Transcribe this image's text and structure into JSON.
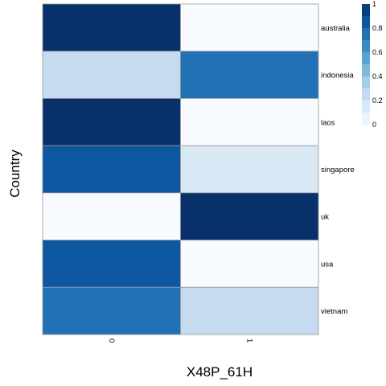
{
  "chart_data": {
    "type": "heatmap",
    "xlabel": "X48P_61H",
    "ylabel": "Country",
    "x_categories": [
      "0",
      "1"
    ],
    "y_categories": [
      "australia",
      "indonesia",
      "laos",
      "singapore",
      "uk",
      "usa",
      "vietnam"
    ],
    "values": [
      [
        1.0,
        0.0
      ],
      [
        0.25,
        0.75
      ],
      [
        1.0,
        0.0
      ],
      [
        0.85,
        0.15
      ],
      [
        0.0,
        1.0
      ],
      [
        0.85,
        0.0
      ],
      [
        0.75,
        0.25
      ]
    ],
    "color_scale": {
      "min": 0,
      "max": 1,
      "low_color": "#f7fbff",
      "high_color": "#08306b",
      "palette": [
        "#f7fbff",
        "#deebf7",
        "#c6dbef",
        "#9ecae1",
        "#6baed6",
        "#4292c6",
        "#2171b5",
        "#08519c",
        "#08306b"
      ]
    },
    "legend": {
      "ticks": [
        "0",
        "0.2",
        "0.4",
        "0.6",
        "0.8",
        "1"
      ],
      "placement": "top-right"
    },
    "grid": false,
    "cell_border_color": "#999999"
  }
}
